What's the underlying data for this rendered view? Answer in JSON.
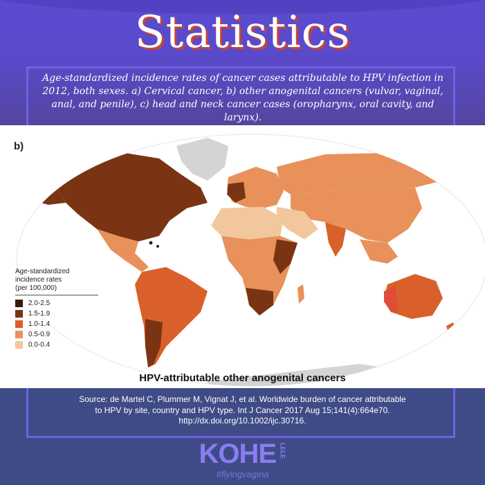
{
  "header": {
    "title": "Statistics"
  },
  "caption": "Age-standardized incidence rates of cancer cases attributable to HPV infection in 2012, both sexes. a) Cervical cancer, b) other anogenital cancers (vulvar, vaginal, anal, and penile), c) head and neck cancer cases (oropharynx, oral cavity, and larynx).",
  "map": {
    "panel_label": "b)",
    "title": "HPV-attributable other anogenital cancers",
    "legend": {
      "title_line1": "Age-standardized",
      "title_line2": "incidence rates",
      "title_line3": "(per 100,000)",
      "items": [
        {
          "label": "2.0-2.5",
          "color": "#3a1a0c"
        },
        {
          "label": "1.5-1.9",
          "color": "#7a3413"
        },
        {
          "label": "1.0-1.4",
          "color": "#d9602a"
        },
        {
          "label": "0.5-0.9",
          "color": "#e8915a"
        },
        {
          "label": "0.0-0.4",
          "color": "#f2c79d"
        }
      ]
    },
    "colors": {
      "ocean": "#ffffff",
      "no_data": "#d4d4d4"
    }
  },
  "source": "Source: de Martel C, Plummer M, Vignat J, et al. Worldwide burden of cancer attributable to HPV by site, country and HPV type. Int J Cancer 2017 Aug 15;141(4):664e70. http://dx.doi.org/10.1002/ijc.30716.",
  "logo": {
    "main": "KOHE",
    "side": "LELE",
    "tagline": "#flyingvagina"
  }
}
